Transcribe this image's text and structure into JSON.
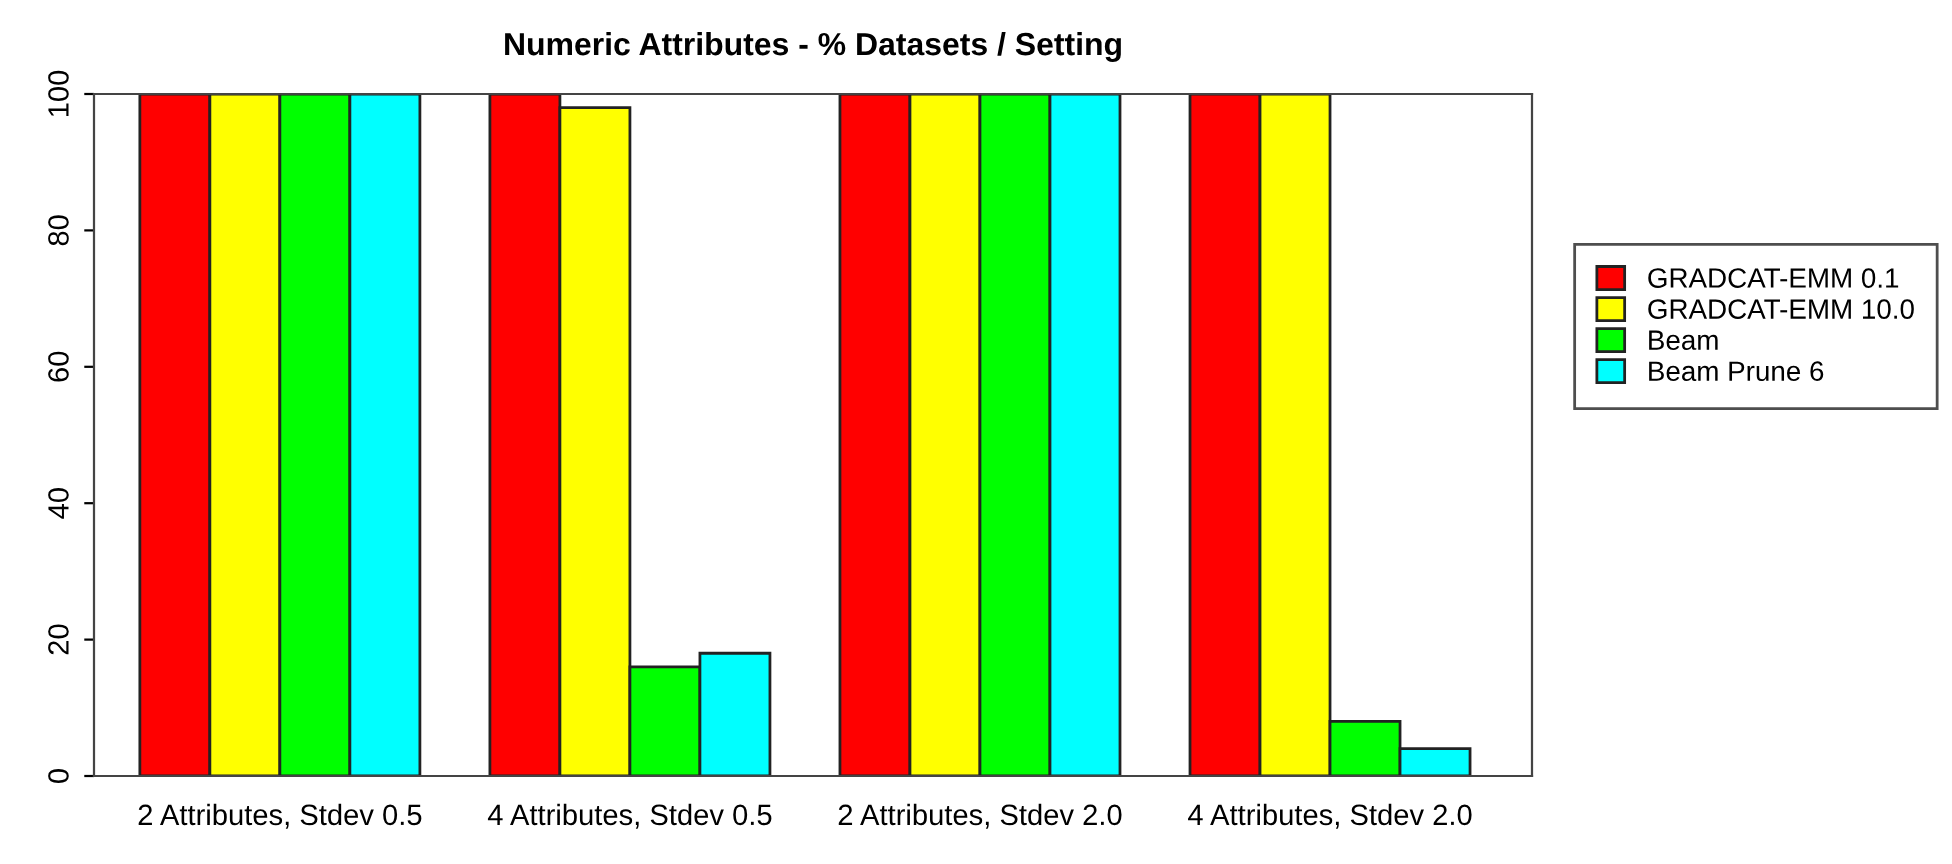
{
  "chart_data": {
    "type": "bar",
    "title": "Numeric Attributes - % Datasets / Setting",
    "categories": [
      "2 Attributes, Stdev 0.5",
      "4 Attributes, Stdev 0.5",
      "2 Attributes, Stdev 2.0",
      "4 Attributes, Stdev 2.0"
    ],
    "series": [
      {
        "name": "GRADCAT-EMM 0.1",
        "color": "#ff0000",
        "values": [
          100,
          100,
          100,
          100
        ]
      },
      {
        "name": "GRADCAT-EMM 10.0",
        "color": "#ffff00",
        "values": [
          100,
          98,
          100,
          100
        ]
      },
      {
        "name": "Beam",
        "color": "#00ff00",
        "values": [
          100,
          16,
          100,
          8
        ]
      },
      {
        "name": "Beam Prune 6",
        "color": "#00ffff",
        "values": [
          100,
          18,
          100,
          4
        ]
      }
    ],
    "ylim": [
      0,
      100
    ],
    "yticks": [
      0,
      20,
      40,
      60,
      80,
      100
    ],
    "grid": false,
    "legend": "right"
  }
}
